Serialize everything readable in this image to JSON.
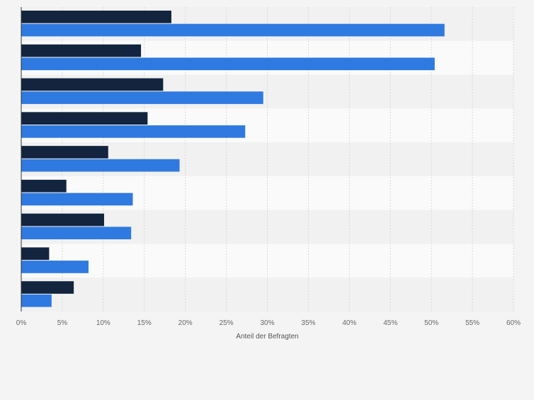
{
  "chart_data": {
    "type": "bar",
    "orientation": "horizontal",
    "categories": [
      "",
      "",
      "",
      "",
      "",
      "",
      "",
      "",
      ""
    ],
    "series": [
      {
        "color": "#13253e",
        "values": [
          18.3,
          14.6,
          17.3,
          15.4,
          10.6,
          5.5,
          10.1,
          3.4,
          6.4
        ]
      },
      {
        "color": "#2f7ae0",
        "values": [
          51.6,
          50.4,
          29.5,
          27.3,
          19.3,
          13.6,
          13.4,
          8.2,
          3.7
        ]
      }
    ],
    "xlabel": "Anteil der Befragten",
    "xlim": [
      0,
      60
    ],
    "xticks": [
      0,
      5,
      10,
      15,
      20,
      25,
      30,
      35,
      40,
      45,
      50,
      55,
      60
    ],
    "tick_suffix": "%",
    "grid": true,
    "legend": "none"
  }
}
